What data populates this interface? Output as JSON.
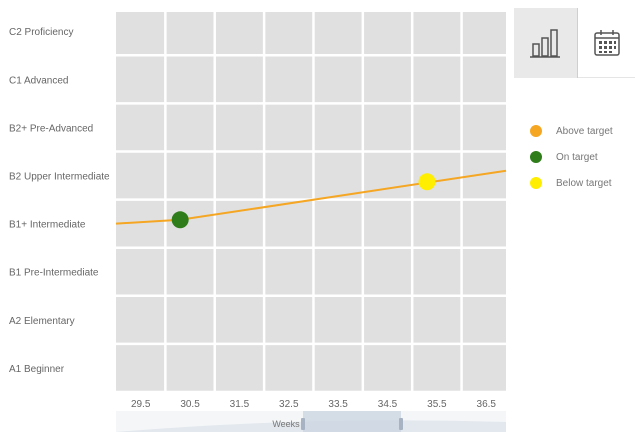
{
  "chart_data": {
    "type": "line",
    "xlabel": "Weeks",
    "ylabel": "",
    "x_ticks": [
      "29.5",
      "30.5",
      "31.5",
      "32.5",
      "33.5",
      "34.5",
      "35.5",
      "36.5"
    ],
    "x_range": [
      29.0,
      36.9
    ],
    "y_categories": [
      "A1 Beginner",
      "A2 Elementary",
      "B1 Pre-Intermediate",
      "B1+ Intermediate",
      "B2 Upper Intermediate",
      "B2+ Pre-Advanced",
      "C1 Advanced",
      "C2 Proficiency"
    ],
    "y_range": [
      0.5,
      8.4
    ],
    "grid": true,
    "legend_position": "right",
    "series": [
      {
        "line_color": "#f5a623",
        "points": [
          {
            "x": 29.0,
            "y": 4.0
          },
          {
            "x": 30.3,
            "y": 4.08
          },
          {
            "x": 36.9,
            "y": 5.1
          }
        ]
      }
    ],
    "markers": [
      {
        "x": 30.3,
        "y": 4.08,
        "status": "On target",
        "color": "#2e7d1a"
      },
      {
        "x": 35.3,
        "y": 4.87,
        "status": "Below target",
        "color": "#ffee00"
      }
    ],
    "legend": [
      {
        "label": "Above target",
        "color": "#f5a623"
      },
      {
        "label": "On target",
        "color": "#2e7d1a"
      },
      {
        "label": "Below target",
        "color": "#ffee00"
      }
    ]
  },
  "tabs": [
    {
      "icon": "bar-chart-icon",
      "active": true
    },
    {
      "icon": "calendar-icon",
      "active": false
    }
  ]
}
